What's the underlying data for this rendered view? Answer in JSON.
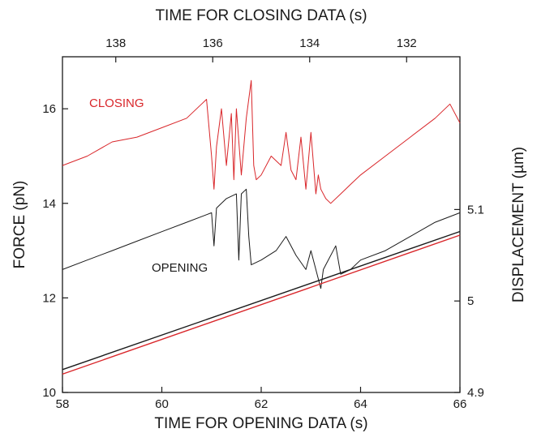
{
  "chart_data": {
    "type": "line",
    "title": "",
    "xlabel": "TIME FOR OPENING DATA (s)",
    "x2label": "TIME FOR CLOSING DATA (s)",
    "ylabel": "FORCE (pN)",
    "y2label": "DISPLACEMENT (µm)",
    "xlim": [
      58,
      66
    ],
    "x2lim": [
      139.1,
      130.9
    ],
    "ylim": [
      10,
      17.1
    ],
    "y2lim": [
      4.9,
      5.267
    ],
    "x_ticks": [
      "58",
      "60",
      "62",
      "64",
      "66"
    ],
    "x2_ticks": [
      "138",
      "136",
      "134",
      "132"
    ],
    "y_ticks": [
      "10",
      "12",
      "14",
      "16"
    ],
    "y2_ticks": [
      "4.9",
      "5",
      "5.1"
    ],
    "grid": false,
    "legend": "none",
    "annotations": [
      {
        "text": "CLOSING",
        "color": "#d9262a"
      },
      {
        "text": "OPENING",
        "color": "#1a1a1a"
      }
    ],
    "series": [
      {
        "axis": "force",
        "color": "#d9262a",
        "x": [
          58.0,
          58.5,
          59.0,
          59.5,
          60.0,
          60.5,
          60.8,
          60.9,
          61.0,
          61.05,
          61.1,
          61.2,
          61.3,
          61.4,
          61.45,
          61.5,
          61.6,
          61.7,
          61.8,
          61.85,
          61.9,
          62.0,
          62.2,
          62.4,
          62.5,
          62.6,
          62.7,
          62.8,
          62.9,
          63.0,
          63.1,
          63.15,
          63.2,
          63.3,
          63.4,
          63.6,
          63.8,
          64.0,
          64.5,
          65.0,
          65.5,
          65.8,
          66.0
        ],
        "y": [
          14.8,
          15.0,
          15.3,
          15.4,
          15.6,
          15.8,
          16.1,
          16.2,
          15.0,
          14.3,
          15.2,
          16.0,
          14.8,
          15.9,
          14.5,
          16.0,
          14.6,
          15.8,
          16.6,
          14.8,
          14.5,
          14.6,
          15.0,
          14.8,
          15.5,
          14.7,
          14.5,
          15.4,
          14.3,
          15.5,
          14.2,
          14.6,
          14.3,
          14.1,
          14.0,
          14.2,
          14.4,
          14.6,
          15.0,
          15.4,
          15.8,
          16.1,
          15.7
        ]
      },
      {
        "axis": "force",
        "color": "#1a1a1a",
        "x": [
          58.0,
          58.5,
          59.0,
          59.5,
          60.0,
          60.5,
          61.0,
          61.05,
          61.1,
          61.3,
          61.5,
          61.55,
          61.6,
          61.7,
          61.75,
          61.8,
          62.0,
          62.3,
          62.5,
          62.7,
          62.9,
          63.0,
          63.2,
          63.25,
          63.3,
          63.5,
          63.6,
          63.8,
          64.0,
          64.5,
          65.0,
          65.5,
          66.0
        ],
        "y": [
          12.6,
          12.8,
          13.0,
          13.2,
          13.4,
          13.6,
          13.8,
          13.1,
          13.9,
          14.1,
          14.2,
          12.8,
          14.2,
          14.3,
          13.3,
          12.7,
          12.8,
          13.0,
          13.3,
          12.9,
          12.6,
          13.0,
          12.2,
          12.6,
          12.7,
          13.1,
          12.5,
          12.6,
          12.8,
          13.0,
          13.3,
          13.6,
          13.8
        ]
      },
      {
        "axis": "displacement",
        "color": "#1a1a1a",
        "x": [
          58,
          66
        ],
        "y": [
          4.925,
          5.076
        ]
      },
      {
        "axis": "displacement",
        "color": "#d9262a",
        "x": [
          58,
          66
        ],
        "y": [
          4.92,
          5.072
        ]
      }
    ]
  }
}
